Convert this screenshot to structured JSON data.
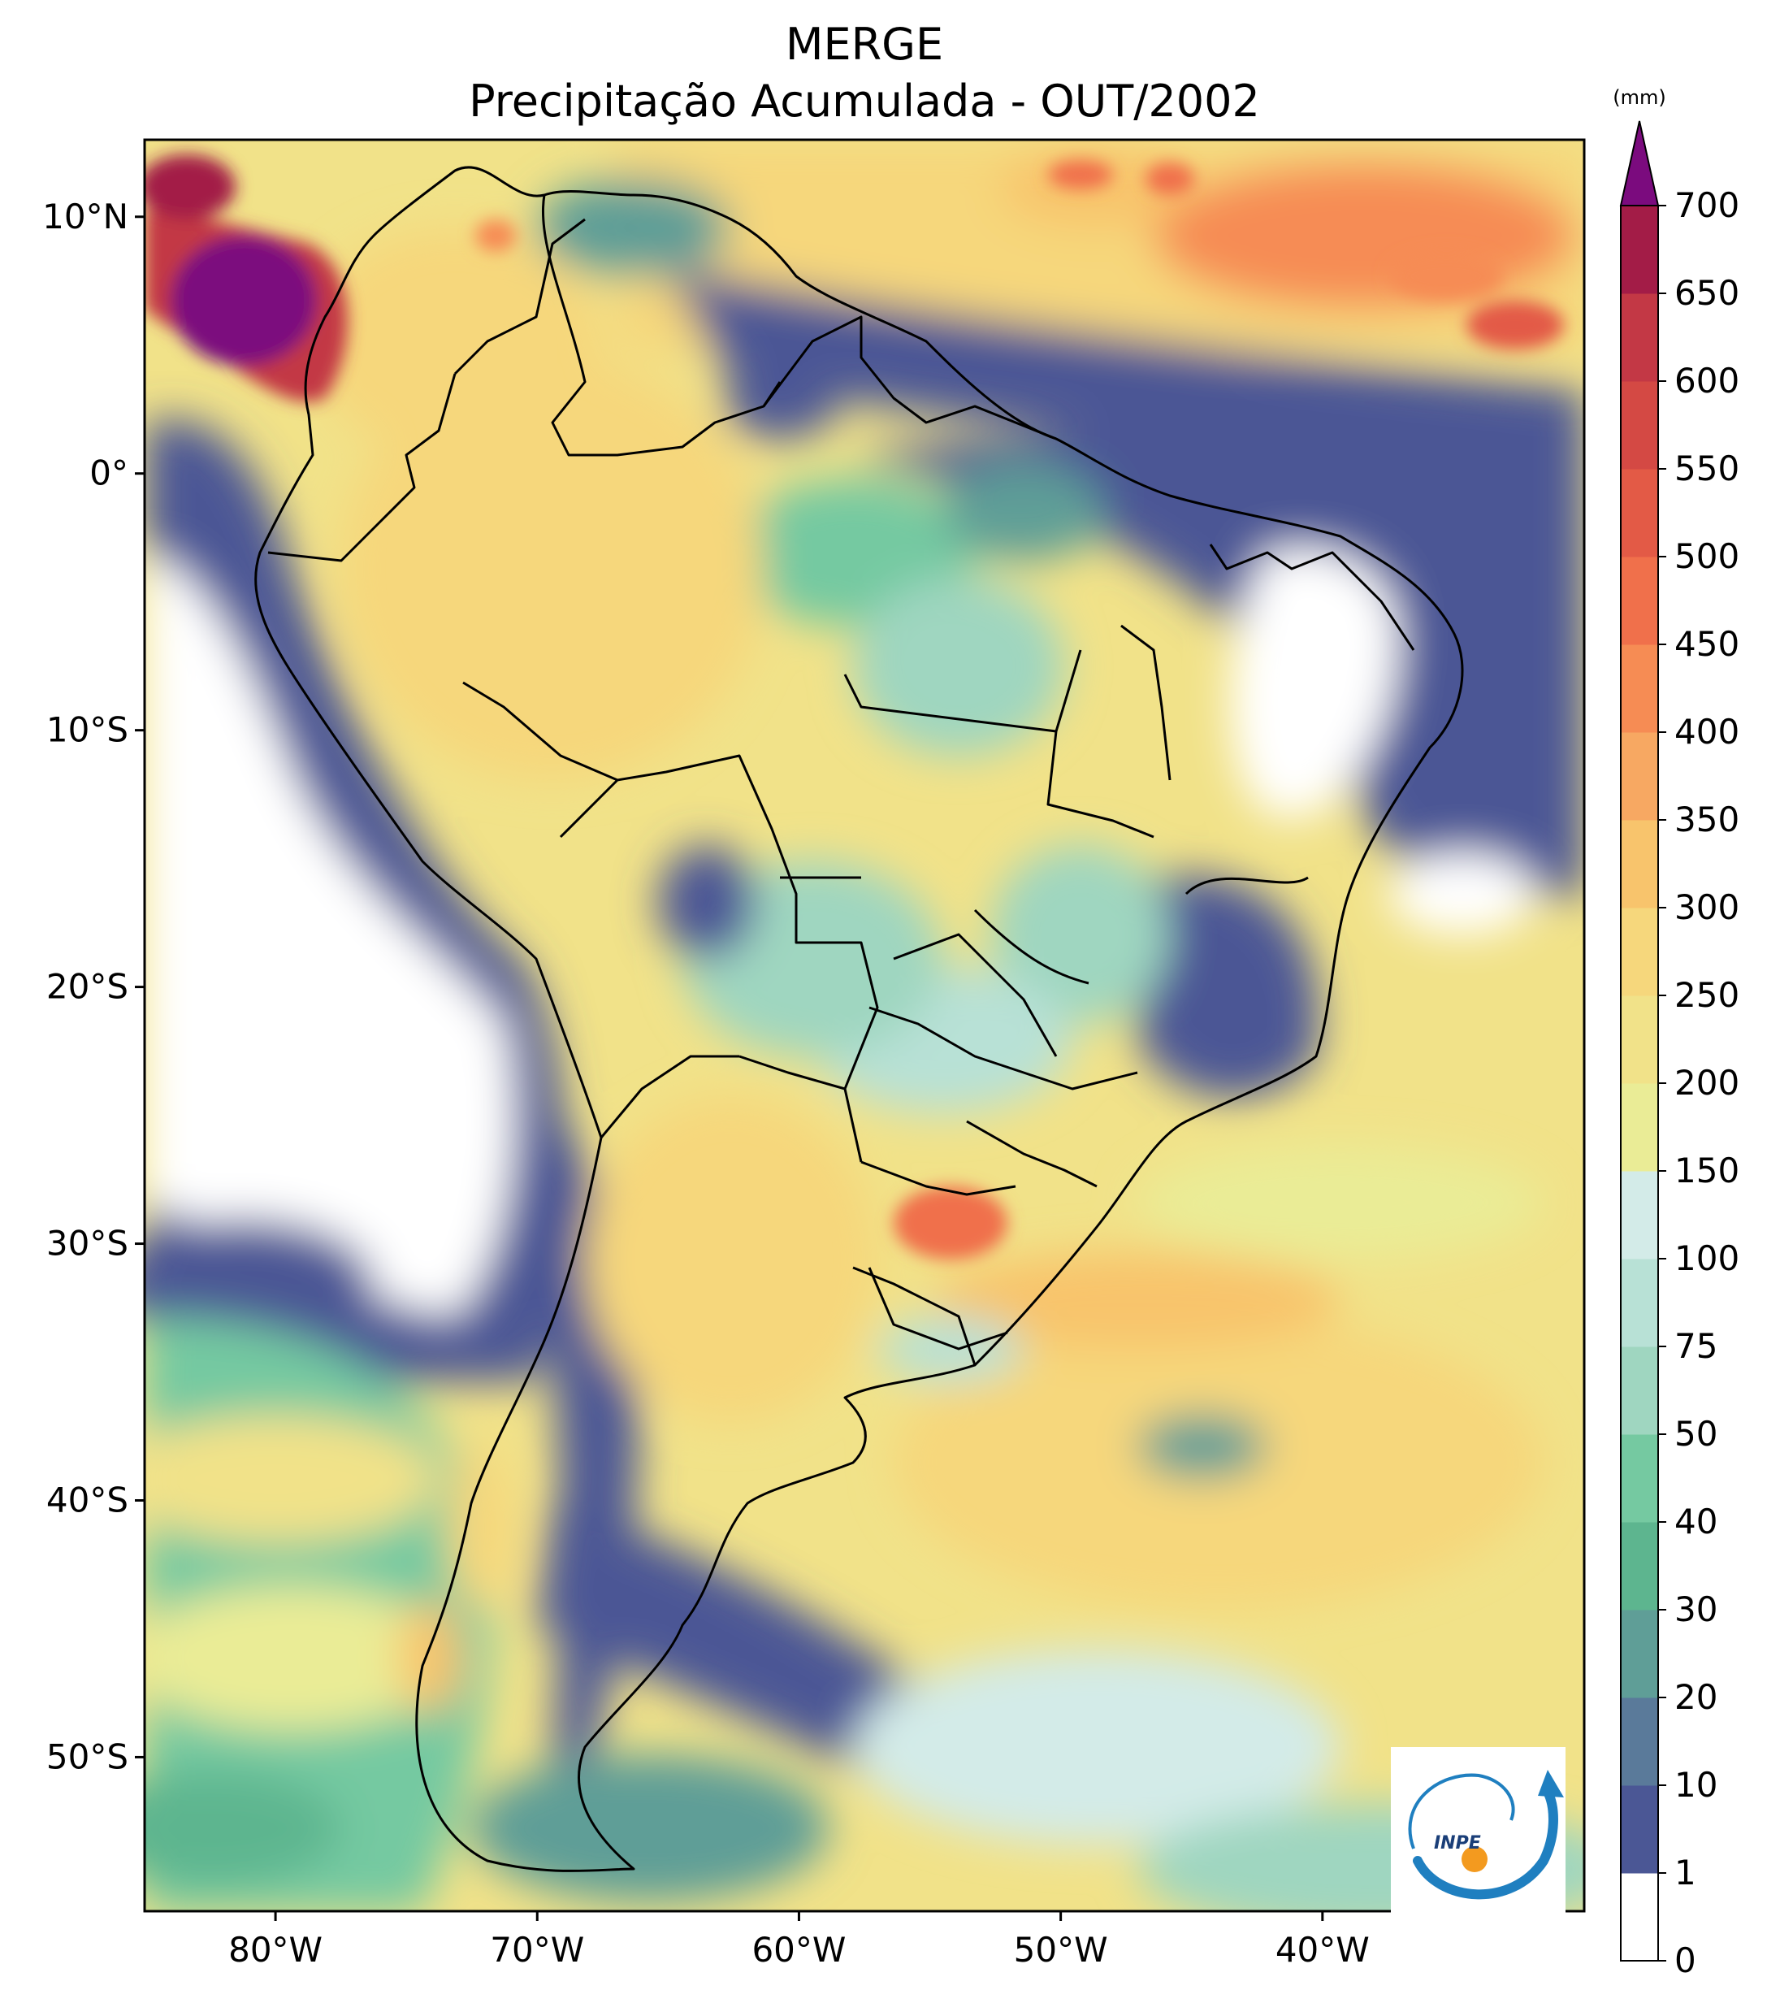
{
  "title": {
    "line1": "MERGE",
    "line2": "Precipitação Acumulada - OUT/2002"
  },
  "map": {
    "projection": "PlateCarree",
    "lon_range": [
      -85,
      -30
    ],
    "lat_range": [
      -56,
      13
    ],
    "lon_ticks": [
      {
        "value": -80,
        "label": "80°W"
      },
      {
        "value": -70,
        "label": "70°W"
      },
      {
        "value": -60,
        "label": "60°W"
      },
      {
        "value": -50,
        "label": "50°W"
      },
      {
        "value": -40,
        "label": "40°W"
      }
    ],
    "lat_ticks": [
      {
        "value": 10,
        "label": "10°N"
      },
      {
        "value": 0,
        "label": "0°"
      },
      {
        "value": -10,
        "label": "10°S"
      },
      {
        "value": -20,
        "label": "20°S"
      },
      {
        "value": -30,
        "label": "30°S"
      },
      {
        "value": -40,
        "label": "40°S"
      },
      {
        "value": -50,
        "label": "50°S"
      }
    ]
  },
  "colorbar": {
    "unit": "(mm)",
    "extend": "max",
    "levels": [
      0,
      1,
      10,
      20,
      30,
      40,
      50,
      75,
      100,
      150,
      200,
      250,
      300,
      350,
      400,
      450,
      500,
      550,
      600,
      650,
      700
    ],
    "labels": [
      "0",
      "1",
      "10",
      "20",
      "30",
      "40",
      "50",
      "75",
      "100",
      "150",
      "200",
      "250",
      "300",
      "350",
      "400",
      "450",
      "500",
      "550",
      "600",
      "650",
      "700"
    ],
    "colors": [
      "#ffffff",
      "#4b5795",
      "#5a7a9a",
      "#5f9e97",
      "#5db58f",
      "#75c9a1",
      "#9fd6c0",
      "#b8e1d6",
      "#d3ebe8",
      "#eaec96",
      "#f1e289",
      "#f6d77c",
      "#f8c46c",
      "#f7a862",
      "#f68c54",
      "#f0704b",
      "#e35a46",
      "#d44944",
      "#c33845",
      "#a31c47",
      "#7b0b7e"
    ],
    "over_color": "#7b0b7e"
  },
  "logo": {
    "text": "INPE"
  }
}
